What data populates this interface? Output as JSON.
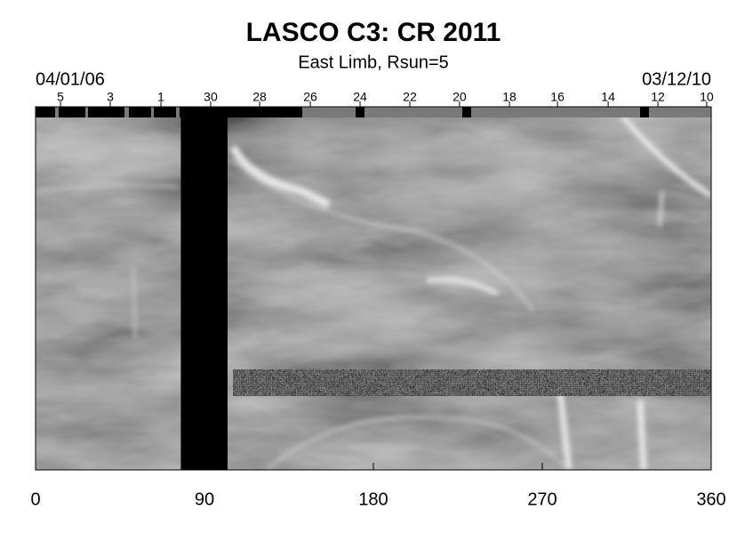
{
  "chart_data": {
    "type": "synoptic",
    "title": "LASCO C3: CR 2011",
    "subtitle": "East Limb, Rsun=5",
    "start_date": "04/01/06",
    "end_date": "03/12/10",
    "xlim": [
      0,
      360
    ],
    "xticks": [
      0,
      90,
      180,
      270,
      360
    ],
    "top_ticks": [
      {
        "value": 13.3,
        "label": "5"
      },
      {
        "value": 39.8,
        "label": "3"
      },
      {
        "value": 66.8,
        "label": "1"
      },
      {
        "value": 93.3,
        "label": "30"
      },
      {
        "value": 119.4,
        "label": "28"
      },
      {
        "value": 146.4,
        "label": "26"
      },
      {
        "value": 172.9,
        "label": "24"
      },
      {
        "value": 199.4,
        "label": "22"
      },
      {
        "value": 225.9,
        "label": "20"
      },
      {
        "value": 252.5,
        "label": "18"
      },
      {
        "value": 278.1,
        "label": "16"
      },
      {
        "value": 305.1,
        "label": "14"
      },
      {
        "value": 331.6,
        "label": "12"
      },
      {
        "value": 357.6,
        "label": "10"
      }
    ],
    "data_gaps": [
      [
        77.4,
        102.3
      ]
    ]
  }
}
